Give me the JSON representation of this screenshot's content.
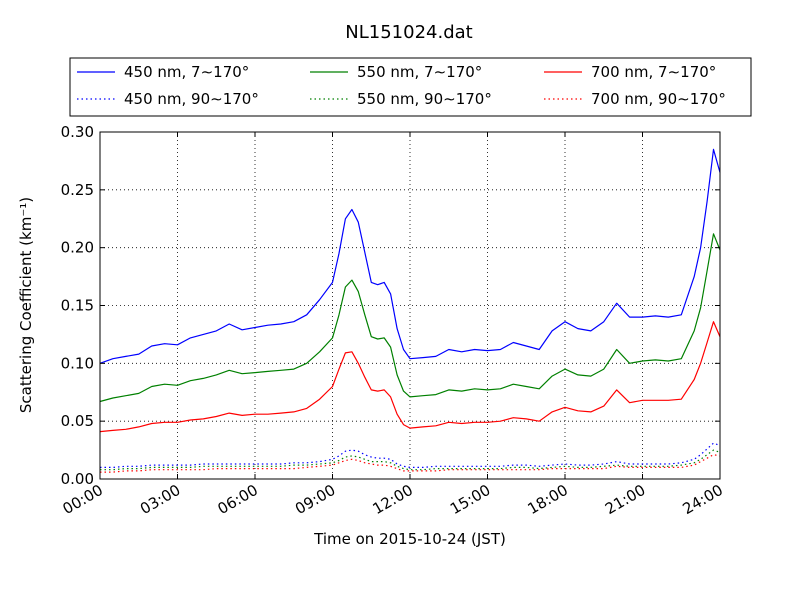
{
  "chart_data": {
    "type": "line",
    "title": "NL151024.dat",
    "xlabel": "Time on 2015-10-24 (JST)",
    "ylabel": "Scattering Coefficient (km⁻¹)",
    "x_unit": "hours",
    "xlim": [
      0,
      24
    ],
    "ylim": [
      0,
      0.3
    ],
    "x_ticks": [
      0,
      3,
      6,
      9,
      12,
      15,
      18,
      21,
      24
    ],
    "x_tick_labels": [
      "00:00",
      "03:00",
      "06:00",
      "09:00",
      "12:00",
      "15:00",
      "18:00",
      "21:00",
      "24:00"
    ],
    "y_ticks": [
      0.0,
      0.05,
      0.1,
      0.15,
      0.2,
      0.25,
      0.3
    ],
    "y_tick_labels": [
      "0.00",
      "0.05",
      "0.10",
      "0.15",
      "0.20",
      "0.25",
      "0.30"
    ],
    "grid": true,
    "legend_position": "top, above plot",
    "x": [
      0,
      0.5,
      1,
      1.5,
      2,
      2.5,
      3,
      3.5,
      4,
      4.5,
      5,
      5.5,
      6,
      6.5,
      7,
      7.5,
      8,
      8.5,
      9,
      9.25,
      9.5,
      9.75,
      10,
      10.25,
      10.5,
      10.75,
      11,
      11.25,
      11.5,
      11.75,
      12,
      12.5,
      13,
      13.5,
      14,
      14.5,
      15,
      15.5,
      16,
      16.5,
      17,
      17.5,
      18,
      18.5,
      19,
      19.5,
      20,
      20.5,
      21,
      21.5,
      22,
      22.5,
      23,
      23.25,
      23.5,
      23.75,
      24
    ],
    "series": [
      {
        "name": "450 nm, 7∼170°",
        "color": "#0000ff",
        "style": "solid",
        "values": [
          0.1,
          0.104,
          0.106,
          0.108,
          0.115,
          0.117,
          0.116,
          0.122,
          0.125,
          0.128,
          0.134,
          0.129,
          0.131,
          0.133,
          0.134,
          0.136,
          0.142,
          0.155,
          0.17,
          0.195,
          0.225,
          0.233,
          0.222,
          0.196,
          0.17,
          0.168,
          0.17,
          0.16,
          0.13,
          0.112,
          0.104,
          0.105,
          0.106,
          0.112,
          0.11,
          0.112,
          0.111,
          0.112,
          0.118,
          0.115,
          0.112,
          0.128,
          0.136,
          0.13,
          0.128,
          0.136,
          0.152,
          0.14,
          0.14,
          0.141,
          0.14,
          0.142,
          0.175,
          0.2,
          0.24,
          0.285,
          0.265
        ]
      },
      {
        "name": "550 nm, 7∼170°",
        "color": "#008000",
        "style": "solid",
        "values": [
          0.067,
          0.07,
          0.072,
          0.074,
          0.08,
          0.082,
          0.081,
          0.085,
          0.087,
          0.09,
          0.094,
          0.091,
          0.092,
          0.093,
          0.094,
          0.095,
          0.1,
          0.11,
          0.122,
          0.142,
          0.166,
          0.172,
          0.162,
          0.142,
          0.123,
          0.121,
          0.122,
          0.114,
          0.09,
          0.076,
          0.071,
          0.072,
          0.073,
          0.077,
          0.076,
          0.078,
          0.077,
          0.078,
          0.082,
          0.08,
          0.078,
          0.089,
          0.095,
          0.09,
          0.089,
          0.095,
          0.112,
          0.1,
          0.102,
          0.103,
          0.102,
          0.104,
          0.128,
          0.148,
          0.18,
          0.212,
          0.198
        ]
      },
      {
        "name": "700 nm, 7∼170°",
        "color": "#ff0000",
        "style": "solid",
        "values": [
          0.041,
          0.042,
          0.043,
          0.045,
          0.048,
          0.049,
          0.049,
          0.051,
          0.052,
          0.054,
          0.057,
          0.055,
          0.056,
          0.056,
          0.057,
          0.058,
          0.061,
          0.069,
          0.08,
          0.095,
          0.109,
          0.11,
          0.1,
          0.088,
          0.077,
          0.076,
          0.077,
          0.071,
          0.056,
          0.047,
          0.044,
          0.045,
          0.046,
          0.049,
          0.048,
          0.049,
          0.049,
          0.05,
          0.053,
          0.052,
          0.05,
          0.058,
          0.062,
          0.059,
          0.058,
          0.063,
          0.077,
          0.066,
          0.068,
          0.068,
          0.068,
          0.069,
          0.086,
          0.1,
          0.118,
          0.136,
          0.123
        ]
      },
      {
        "name": "450 nm, 90∼170°",
        "color": "#0000ff",
        "style": "dotted",
        "values": [
          0.01,
          0.01,
          0.011,
          0.011,
          0.012,
          0.012,
          0.012,
          0.012,
          0.013,
          0.013,
          0.013,
          0.013,
          0.013,
          0.013,
          0.013,
          0.014,
          0.014,
          0.015,
          0.017,
          0.02,
          0.024,
          0.025,
          0.024,
          0.021,
          0.019,
          0.018,
          0.018,
          0.017,
          0.013,
          0.011,
          0.01,
          0.01,
          0.011,
          0.011,
          0.011,
          0.011,
          0.011,
          0.011,
          0.012,
          0.012,
          0.011,
          0.012,
          0.013,
          0.012,
          0.012,
          0.013,
          0.015,
          0.013,
          0.013,
          0.013,
          0.013,
          0.014,
          0.017,
          0.021,
          0.026,
          0.031,
          0.029
        ]
      },
      {
        "name": "550 nm, 90∼170°",
        "color": "#008000",
        "style": "dotted",
        "values": [
          0.008,
          0.008,
          0.009,
          0.009,
          0.01,
          0.01,
          0.01,
          0.01,
          0.011,
          0.011,
          0.011,
          0.011,
          0.011,
          0.011,
          0.011,
          0.012,
          0.012,
          0.013,
          0.014,
          0.016,
          0.019,
          0.02,
          0.019,
          0.017,
          0.015,
          0.015,
          0.015,
          0.014,
          0.011,
          0.009,
          0.008,
          0.008,
          0.009,
          0.009,
          0.009,
          0.009,
          0.009,
          0.009,
          0.01,
          0.01,
          0.009,
          0.01,
          0.011,
          0.01,
          0.01,
          0.011,
          0.012,
          0.011,
          0.011,
          0.011,
          0.011,
          0.012,
          0.014,
          0.017,
          0.021,
          0.025,
          0.023
        ]
      },
      {
        "name": "700 nm, 90∼170°",
        "color": "#ff0000",
        "style": "dotted",
        "values": [
          0.006,
          0.006,
          0.007,
          0.007,
          0.008,
          0.008,
          0.008,
          0.008,
          0.008,
          0.009,
          0.009,
          0.009,
          0.009,
          0.009,
          0.009,
          0.009,
          0.01,
          0.011,
          0.012,
          0.014,
          0.016,
          0.017,
          0.016,
          0.014,
          0.013,
          0.012,
          0.012,
          0.011,
          0.009,
          0.007,
          0.007,
          0.007,
          0.007,
          0.008,
          0.008,
          0.008,
          0.008,
          0.008,
          0.008,
          0.008,
          0.008,
          0.009,
          0.009,
          0.009,
          0.009,
          0.009,
          0.011,
          0.01,
          0.01,
          0.01,
          0.01,
          0.01,
          0.012,
          0.015,
          0.018,
          0.021,
          0.02
        ]
      }
    ],
    "legend_layout": [
      [
        "450 nm, 7∼170°",
        "550 nm, 7∼170°",
        "700 nm, 7∼170°"
      ],
      [
        "450 nm, 90∼170°",
        "550 nm, 90∼170°",
        "700 nm, 90∼170°"
      ]
    ]
  }
}
